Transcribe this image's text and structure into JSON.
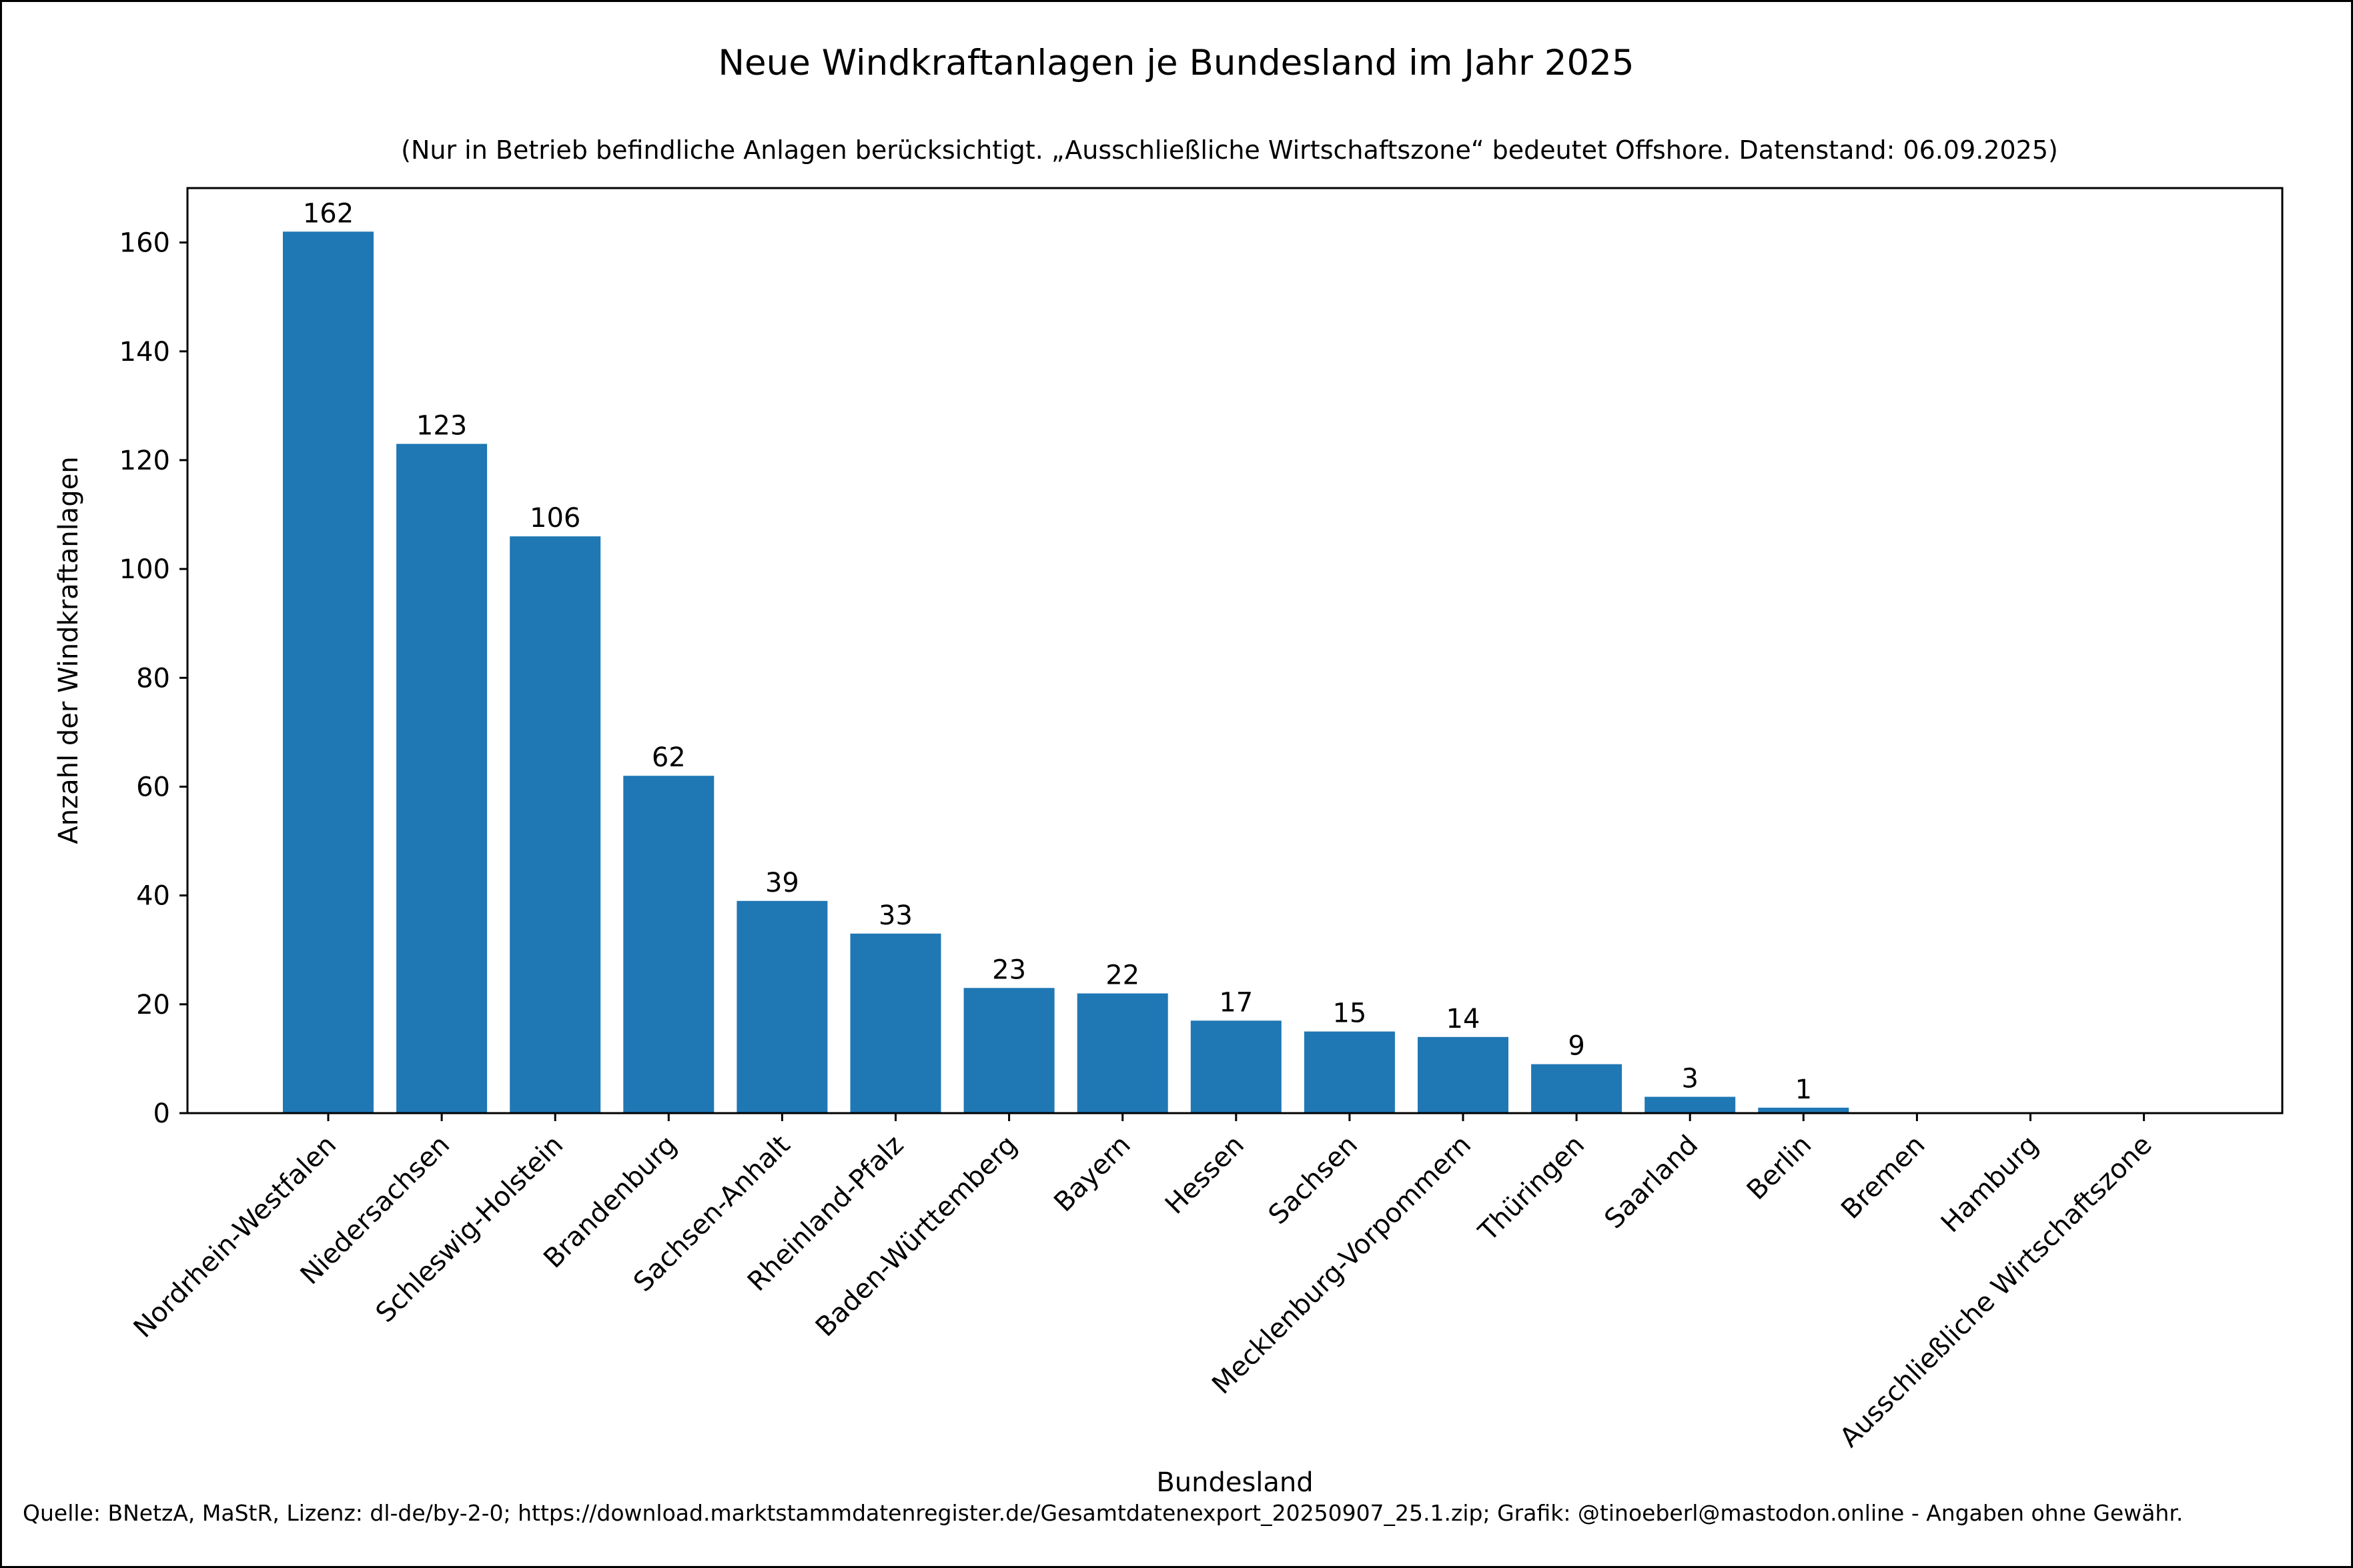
{
  "chart_data": {
    "type": "bar",
    "title": "Neue Windkraftanlagen je Bundesland im Jahr 2025",
    "subtitle": "(Nur in Betrieb befindliche Anlagen berücksichtigt. „Ausschließliche Wirtschaftszone“ bedeutet Offshore. Datenstand: 06.09.2025)",
    "xlabel": "Bundesland",
    "ylabel": "Anzahl der Windkraftanlagen",
    "categories": [
      "Nordrhein-Westfalen",
      "Niedersachsen",
      "Schleswig-Holstein",
      "Brandenburg",
      "Sachsen-Anhalt",
      "Rheinland-Pfalz",
      "Baden-Württemberg",
      "Bayern",
      "Hessen",
      "Sachsen",
      "Mecklenburg-Vorpommern",
      "Thüringen",
      "Saarland",
      "Berlin",
      "Bremen",
      "Hamburg",
      "Ausschließliche Wirtschaftszone"
    ],
    "values": [
      162,
      123,
      106,
      62,
      39,
      33,
      23,
      22,
      17,
      15,
      14,
      9,
      3,
      1,
      0,
      0,
      0
    ],
    "data_labels": [
      "162",
      "123",
      "106",
      "62",
      "39",
      "33",
      "23",
      "22",
      "17",
      "15",
      "14",
      "9",
      "3",
      "1",
      "",
      "",
      ""
    ],
    "ylim": [
      0,
      170
    ],
    "yticks": [
      0,
      20,
      40,
      60,
      80,
      100,
      120,
      140,
      160
    ],
    "grid": false,
    "bar_color": "#1f77b4",
    "source": "Quelle: BNetzA, MaStR, Lizenz: dl-de/by-2-0; https://download.marktstammdatenregister.de/Gesamtdatenexport_20250907_25.1.zip; Grafik: @tinoeberl@mastodon.online - Angaben ohne Gewähr."
  }
}
